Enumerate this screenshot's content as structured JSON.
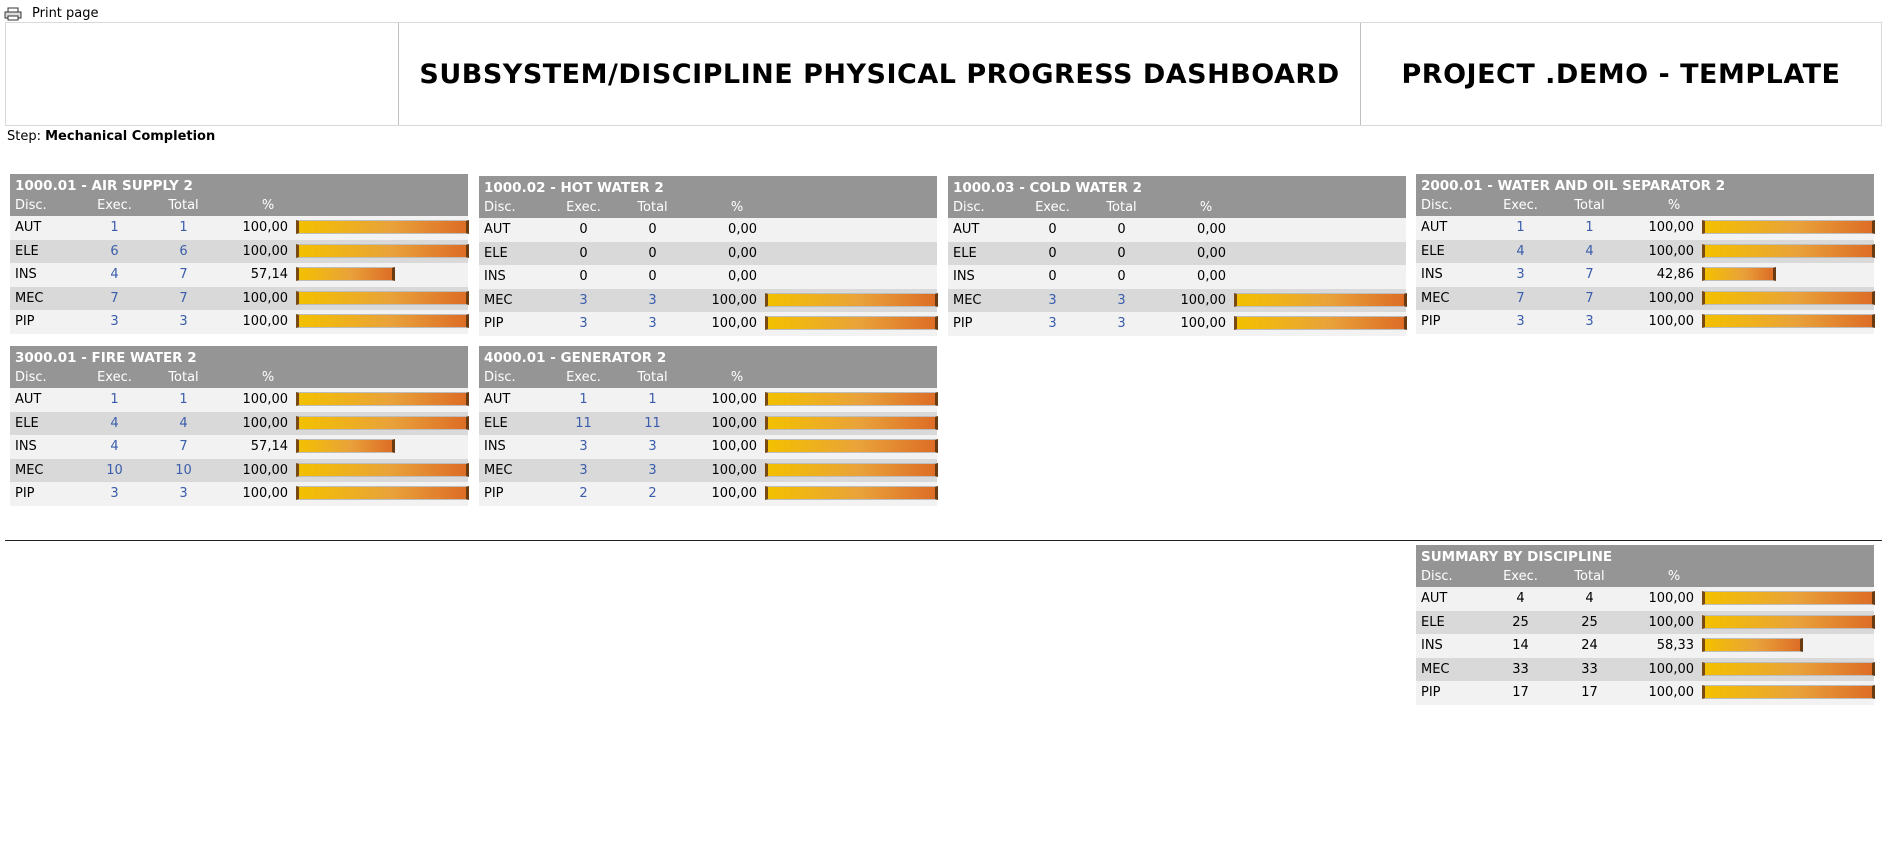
{
  "print": {
    "label": "Print page"
  },
  "header": {
    "title": "SUBSYSTEM/DISCIPLINE PHYSICAL PROGRESS DASHBOARD",
    "project": "PROJECT .DEMO - TEMPLATE"
  },
  "step": {
    "label": "Step:",
    "value": "Mechanical Completion"
  },
  "columns": {
    "disc": "Disc.",
    "exec": "Exec.",
    "total": "Total",
    "pct": "%"
  },
  "panels": [
    {
      "title": "1000.01 - AIR SUPPLY 2",
      "rows": [
        {
          "disc": "AUT",
          "exec": "1",
          "total": "1",
          "pct": "100,00",
          "fill": 1.0
        },
        {
          "disc": "ELE",
          "exec": "6",
          "total": "6",
          "pct": "100,00",
          "fill": 1.0
        },
        {
          "disc": "INS",
          "exec": "4",
          "total": "7",
          "pct": "57,14",
          "fill": 0.5714
        },
        {
          "disc": "MEC",
          "exec": "7",
          "total": "7",
          "pct": "100,00",
          "fill": 1.0
        },
        {
          "disc": "PIP",
          "exec": "3",
          "total": "3",
          "pct": "100,00",
          "fill": 1.0
        }
      ]
    },
    {
      "title": "1000.02 - HOT WATER 2",
      "rows": [
        {
          "disc": "AUT",
          "exec": "0",
          "total": "0",
          "pct": "0,00",
          "fill": 0
        },
        {
          "disc": "ELE",
          "exec": "0",
          "total": "0",
          "pct": "0,00",
          "fill": 0
        },
        {
          "disc": "INS",
          "exec": "0",
          "total": "0",
          "pct": "0,00",
          "fill": 0
        },
        {
          "disc": "MEC",
          "exec": "3",
          "total": "3",
          "pct": "100,00",
          "fill": 1.0
        },
        {
          "disc": "PIP",
          "exec": "3",
          "total": "3",
          "pct": "100,00",
          "fill": 1.0
        }
      ]
    },
    {
      "title": "1000.03 - COLD WATER 2",
      "rows": [
        {
          "disc": "AUT",
          "exec": "0",
          "total": "0",
          "pct": "0,00",
          "fill": 0
        },
        {
          "disc": "ELE",
          "exec": "0",
          "total": "0",
          "pct": "0,00",
          "fill": 0
        },
        {
          "disc": "INS",
          "exec": "0",
          "total": "0",
          "pct": "0,00",
          "fill": 0
        },
        {
          "disc": "MEC",
          "exec": "3",
          "total": "3",
          "pct": "100,00",
          "fill": 1.0
        },
        {
          "disc": "PIP",
          "exec": "3",
          "total": "3",
          "pct": "100,00",
          "fill": 1.0
        }
      ]
    },
    {
      "title": "2000.01 - WATER AND OIL SEPARATOR 2",
      "rows": [
        {
          "disc": "AUT",
          "exec": "1",
          "total": "1",
          "pct": "100,00",
          "fill": 1.0
        },
        {
          "disc": "ELE",
          "exec": "4",
          "total": "4",
          "pct": "100,00",
          "fill": 1.0
        },
        {
          "disc": "INS",
          "exec": "3",
          "total": "7",
          "pct": "42,86",
          "fill": 0.4286
        },
        {
          "disc": "MEC",
          "exec": "7",
          "total": "7",
          "pct": "100,00",
          "fill": 1.0
        },
        {
          "disc": "PIP",
          "exec": "3",
          "total": "3",
          "pct": "100,00",
          "fill": 1.0
        }
      ]
    },
    {
      "title": "3000.01 - FIRE WATER 2",
      "rows": [
        {
          "disc": "AUT",
          "exec": "1",
          "total": "1",
          "pct": "100,00",
          "fill": 1.0
        },
        {
          "disc": "ELE",
          "exec": "4",
          "total": "4",
          "pct": "100,00",
          "fill": 1.0
        },
        {
          "disc": "INS",
          "exec": "4",
          "total": "7",
          "pct": "57,14",
          "fill": 0.5714
        },
        {
          "disc": "MEC",
          "exec": "10",
          "total": "10",
          "pct": "100,00",
          "fill": 1.0
        },
        {
          "disc": "PIP",
          "exec": "3",
          "total": "3",
          "pct": "100,00",
          "fill": 1.0
        }
      ]
    },
    {
      "title": "4000.01 - GENERATOR 2",
      "rows": [
        {
          "disc": "AUT",
          "exec": "1",
          "total": "1",
          "pct": "100,00",
          "fill": 1.0
        },
        {
          "disc": "ELE",
          "exec": "11",
          "total": "11",
          "pct": "100,00",
          "fill": 1.0
        },
        {
          "disc": "INS",
          "exec": "3",
          "total": "3",
          "pct": "100,00",
          "fill": 1.0
        },
        {
          "disc": "MEC",
          "exec": "3",
          "total": "3",
          "pct": "100,00",
          "fill": 1.0
        },
        {
          "disc": "PIP",
          "exec": "2",
          "total": "2",
          "pct": "100,00",
          "fill": 1.0
        }
      ]
    }
  ],
  "summary": {
    "title": "SUMMARY BY DISCIPLINE",
    "rows": [
      {
        "disc": "AUT",
        "exec": "4",
        "total": "4",
        "pct": "100,00",
        "fill": 1.0
      },
      {
        "disc": "ELE",
        "exec": "25",
        "total": "25",
        "pct": "100,00",
        "fill": 1.0
      },
      {
        "disc": "INS",
        "exec": "14",
        "total": "24",
        "pct": "58,33",
        "fill": 0.5833
      },
      {
        "disc": "MEC",
        "exec": "33",
        "total": "33",
        "pct": "100,00",
        "fill": 1.0
      },
      {
        "disc": "PIP",
        "exec": "17",
        "total": "17",
        "pct": "100,00",
        "fill": 1.0
      }
    ]
  },
  "colors": {
    "header_bg": "#959595",
    "row_odd": "#f2f2f2",
    "row_even": "#d9d9d9",
    "link": "#3a5dac",
    "bar_start": "#f3c000",
    "bar_end": "#dd6d26"
  }
}
